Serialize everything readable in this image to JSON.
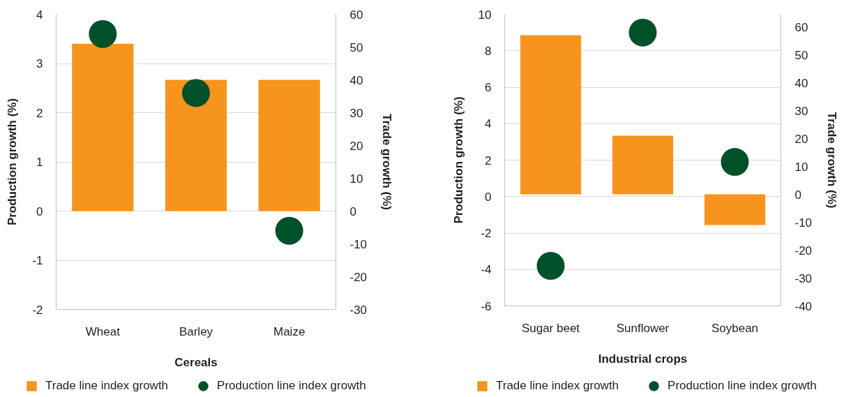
{
  "chart_data": [
    {
      "type": "bar",
      "xlabel": "Cereals",
      "ylabel": "Production growth (%)",
      "y2label": "Trade growth (%)",
      "categories": [
        "Wheat",
        "Barley",
        "Maize"
      ],
      "series": [
        {
          "name": "Trade line index growth",
          "color": "#f7941d",
          "axis": "y2",
          "values": [
            51,
            40,
            40
          ]
        },
        {
          "name": "Production line index growth",
          "type": "scatter",
          "color": "#00502a",
          "values": [
            3.6,
            2.4,
            -0.4
          ]
        }
      ],
      "ylim": [
        -2,
        4
      ],
      "yticks": [
        -2,
        -1,
        0,
        1,
        2,
        3,
        4
      ],
      "y2lim": [
        -30,
        60
      ],
      "y2ticks": [
        -30,
        -20,
        -10,
        0,
        10,
        20,
        30,
        40,
        50,
        60
      ],
      "grid": "y",
      "legend": "bottom",
      "marker": "circle"
    },
    {
      "type": "bar",
      "xlabel": "Industrial crops",
      "ylabel": "Production growth (%)",
      "y2label": "Trade growth (%)",
      "categories": [
        "Sugar beet",
        "Sunflower",
        "Soybean"
      ],
      "series": [
        {
          "name": "Trade line index growth",
          "color": "#f7941d",
          "axis": "y2",
          "values": [
            57,
            21,
            -11
          ]
        },
        {
          "name": "Production line index growth",
          "type": "scatter",
          "color": "#00502a",
          "values": [
            -3.8,
            9.0,
            1.9
          ]
        }
      ],
      "ylim": [
        -6,
        10
      ],
      "yticks": [
        -6,
        -4,
        -2,
        0,
        2,
        4,
        6,
        8,
        10
      ],
      "y2lim": [
        -40,
        64.5
      ],
      "y2ticks": [
        -40,
        -30,
        -20,
        -10,
        0,
        10,
        20,
        30,
        40,
        50,
        60
      ],
      "grid": "y",
      "legend": "bottom",
      "marker": "circle"
    }
  ]
}
